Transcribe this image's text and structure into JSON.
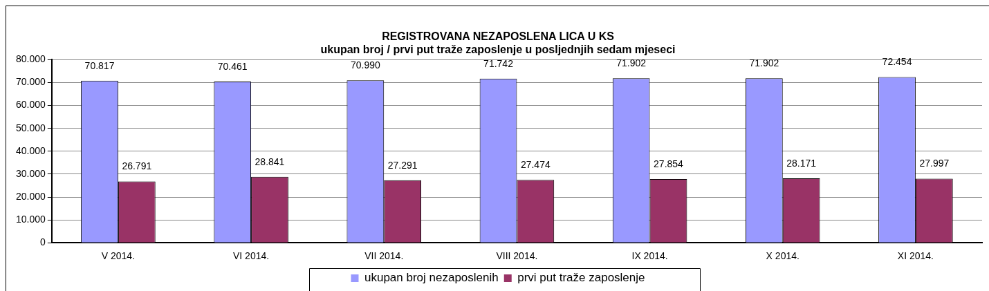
{
  "chart_data": {
    "type": "bar",
    "title": "REGISTROVANA NEZAPOSLENA LICA U KS",
    "subtitle": "ukupan broj / prvi put traže zaposlenje u posljednjih sedam mjeseci",
    "categories": [
      "V 2014.",
      "VI 2014.",
      "VII 2014.",
      "VIII 2014.",
      "IX 2014.",
      "X 2014.",
      "XI 2014."
    ],
    "series": [
      {
        "name": "ukupan broj nezaposlenih",
        "color": "#9999ff",
        "values": [
          70817,
          70461,
          70990,
          71742,
          71902,
          71902,
          72454
        ],
        "value_labels": [
          "70.817",
          "70.461",
          "70.990",
          "71.742",
          "71.902",
          "71.902",
          "72.454"
        ]
      },
      {
        "name": "prvi put traže zaposlenje",
        "color": "#993366",
        "values": [
          26791,
          28841,
          27291,
          27474,
          27854,
          28171,
          27997
        ],
        "value_labels": [
          "26.791",
          "28.841",
          "27.291",
          "27.474",
          "27.854",
          "28.171",
          "27.997"
        ]
      }
    ],
    "ylim": [
      0,
      80000
    ],
    "yticks": [
      {
        "value": 0,
        "label": "0"
      },
      {
        "value": 10000,
        "label": "10.000"
      },
      {
        "value": 20000,
        "label": "20.000"
      },
      {
        "value": 30000,
        "label": "30.000"
      },
      {
        "value": 40000,
        "label": "40.000"
      },
      {
        "value": 50000,
        "label": "50.000"
      },
      {
        "value": 60000,
        "label": "60.000"
      },
      {
        "value": 70000,
        "label": "70.000"
      },
      {
        "value": 80000,
        "label": "80.000"
      }
    ],
    "grid": "y",
    "legend": "bottom"
  }
}
